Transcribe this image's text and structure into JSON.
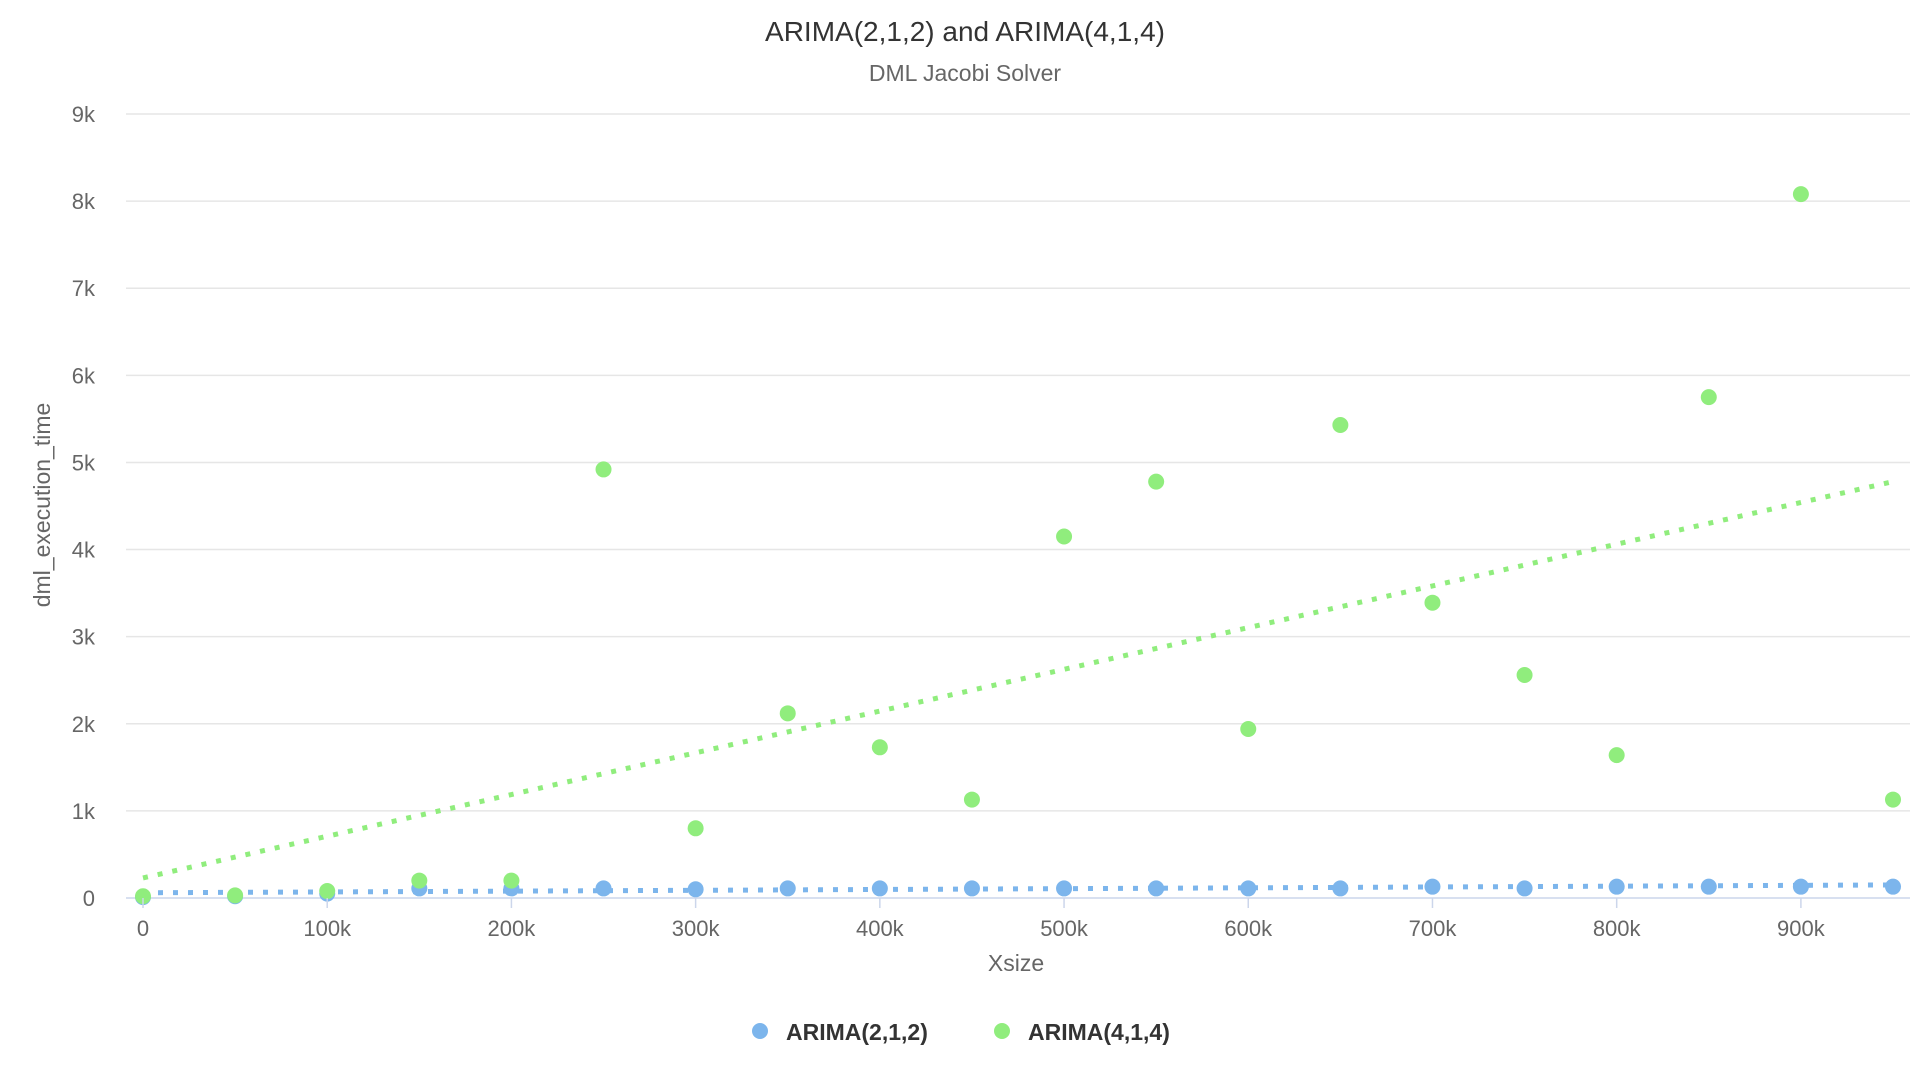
{
  "chart_data": {
    "type": "scatter",
    "title": "ARIMA(2,1,2) and ARIMA(4,1,4)",
    "subtitle": "DML Jacobi Solver",
    "xlabel": "Xsize",
    "ylabel": "dml_execution_time",
    "xlim": [
      0,
      950000
    ],
    "ylim": [
      0,
      9000
    ],
    "x_ticks": [
      {
        "value": 0,
        "label": "0"
      },
      {
        "value": 100000,
        "label": "100k"
      },
      {
        "value": 200000,
        "label": "200k"
      },
      {
        "value": 300000,
        "label": "300k"
      },
      {
        "value": 400000,
        "label": "400k"
      },
      {
        "value": 500000,
        "label": "500k"
      },
      {
        "value": 600000,
        "label": "600k"
      },
      {
        "value": 700000,
        "label": "700k"
      },
      {
        "value": 800000,
        "label": "800k"
      },
      {
        "value": 900000,
        "label": "900k"
      }
    ],
    "y_ticks": [
      {
        "value": 0,
        "label": "0"
      },
      {
        "value": 1000,
        "label": "1k"
      },
      {
        "value": 2000,
        "label": "2k"
      },
      {
        "value": 3000,
        "label": "3k"
      },
      {
        "value": 4000,
        "label": "4k"
      },
      {
        "value": 5000,
        "label": "5k"
      },
      {
        "value": 6000,
        "label": "6k"
      },
      {
        "value": 7000,
        "label": "7k"
      },
      {
        "value": 8000,
        "label": "8k"
      },
      {
        "value": 9000,
        "label": "9k"
      }
    ],
    "grid": true,
    "legend_position": "bottom-center",
    "series": [
      {
        "name": "ARIMA(2,1,2)",
        "color": "#7cb5ec",
        "x": [
          0,
          50000,
          100000,
          150000,
          200000,
          250000,
          300000,
          350000,
          400000,
          450000,
          500000,
          550000,
          600000,
          650000,
          700000,
          750000,
          800000,
          850000,
          900000,
          950000
        ],
        "y": [
          10,
          20,
          50,
          110,
          110,
          110,
          100,
          110,
          110,
          110,
          110,
          110,
          110,
          110,
          130,
          110,
          130,
          130,
          130,
          130
        ],
        "trendline": {
          "style": "dotted",
          "y_start": 60,
          "y_end": 150
        }
      },
      {
        "name": "ARIMA(4,1,4)",
        "color": "#90ed7d",
        "x": [
          0,
          50000,
          100000,
          150000,
          200000,
          250000,
          300000,
          350000,
          400000,
          450000,
          500000,
          550000,
          600000,
          650000,
          700000,
          750000,
          800000,
          850000,
          900000,
          950000
        ],
        "y": [
          20,
          30,
          80,
          200,
          200,
          4920,
          800,
          2120,
          1730,
          1130,
          4150,
          4780,
          1940,
          5430,
          3390,
          2560,
          1640,
          5750,
          8080,
          1130
        ],
        "trendline": {
          "style": "dotted",
          "y_start": 230,
          "y_end": 4780
        }
      }
    ]
  }
}
